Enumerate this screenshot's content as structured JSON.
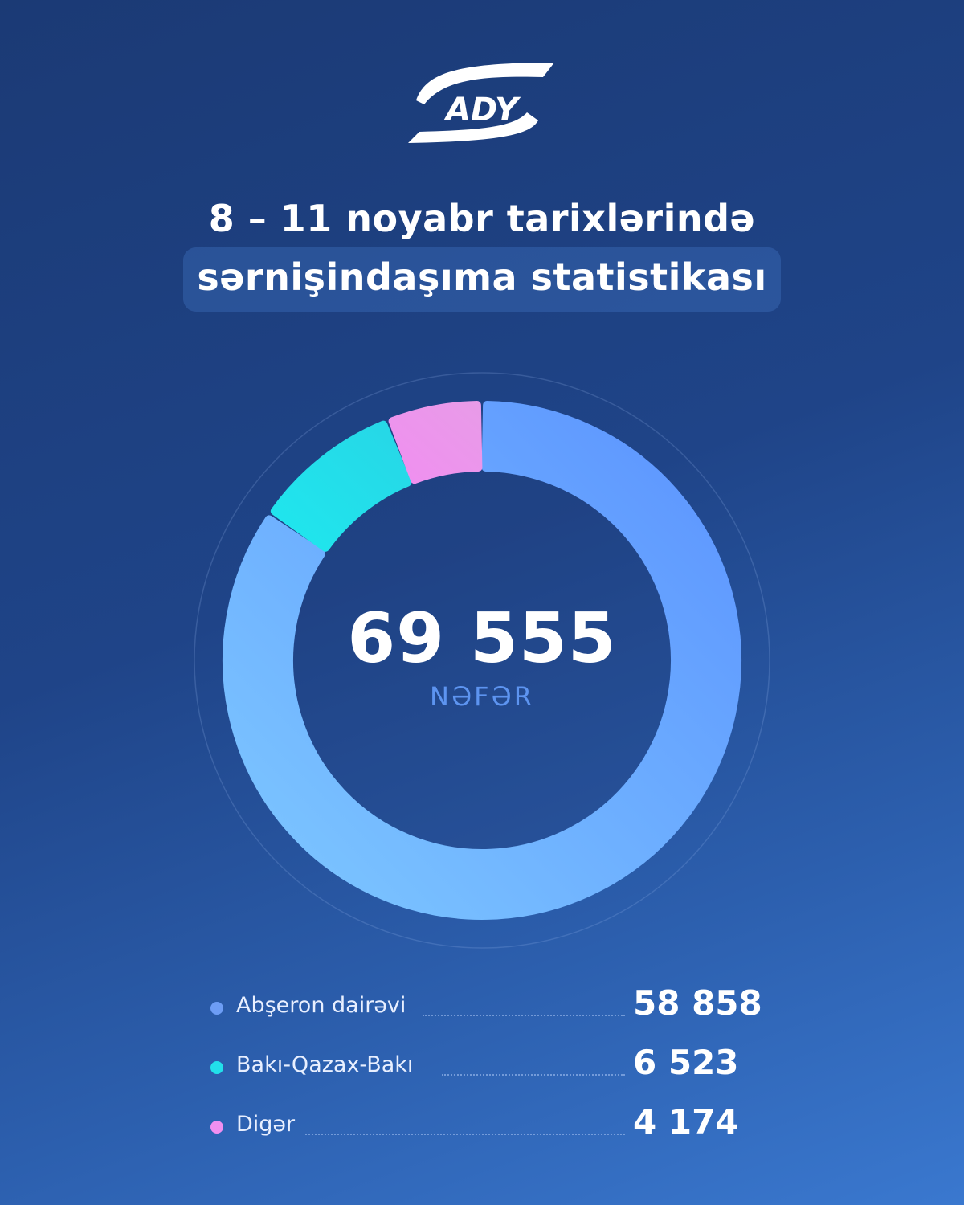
{
  "logo": {
    "text": "ADY"
  },
  "header": {
    "title_line1": "8 – 11 noyabr tarixlərində",
    "title_line2": "sərnişindaşıma statistikası"
  },
  "center": {
    "total": "69 555",
    "unit": "NƏFƏR"
  },
  "colors": {
    "abseron": "#63a4ff",
    "baki_qazax": "#22e0ea",
    "diger": "#f08ff0"
  },
  "chart_data": {
    "type": "pie",
    "style": "donut",
    "total": 69555,
    "unit": "NƏFƏR",
    "categories": [
      "Abşeron dairəvi",
      "Bakı-Qazax-Bakı",
      "Digər"
    ],
    "values": [
      58858,
      6523,
      4174
    ],
    "display_values": [
      "58 858",
      "6 523",
      "4 174"
    ],
    "colors": [
      "#63a4ff",
      "#22e0ea",
      "#f08ff0"
    ],
    "legend": "bottom"
  }
}
